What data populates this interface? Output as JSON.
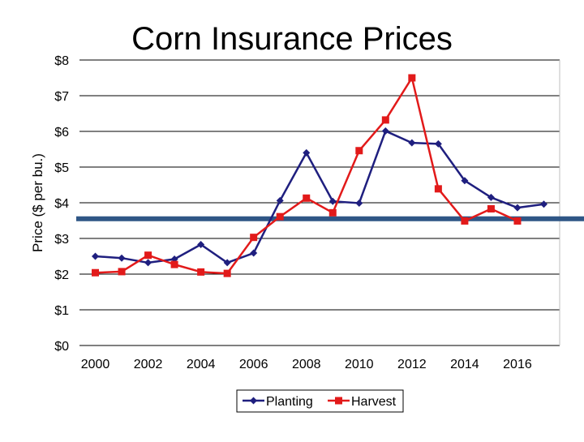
{
  "chart_data": {
    "type": "line",
    "title": "Corn Insurance Prices",
    "xlabel": "",
    "ylabel": "Price ($ per bu.)",
    "ylim": [
      0,
      8
    ],
    "xlim": [
      1999.4,
      2017.6
    ],
    "yticks": [
      {
        "v": 0,
        "label": "$0"
      },
      {
        "v": 1,
        "label": "$1"
      },
      {
        "v": 2,
        "label": "$2"
      },
      {
        "v": 3,
        "label": "$3"
      },
      {
        "v": 4,
        "label": "$4"
      },
      {
        "v": 5,
        "label": "$5"
      },
      {
        "v": 6,
        "label": "$6"
      },
      {
        "v": 7,
        "label": "$7"
      },
      {
        "v": 8,
        "label": "$8"
      }
    ],
    "xticks": [
      {
        "v": 2000,
        "label": "2000"
      },
      {
        "v": 2002,
        "label": "2002"
      },
      {
        "v": 2004,
        "label": "2004"
      },
      {
        "v": 2006,
        "label": "2006"
      },
      {
        "v": 2008,
        "label": "2008"
      },
      {
        "v": 2010,
        "label": "2010"
      },
      {
        "v": 2012,
        "label": "2012"
      },
      {
        "v": 2014,
        "label": "2014"
      },
      {
        "v": 2016,
        "label": "2016"
      }
    ],
    "grid": true,
    "legend_position": "bottom-center",
    "reference_line": {
      "y": 3.55,
      "color": "#2f5686"
    },
    "series": [
      {
        "name": "Planting",
        "color": "#1f1f7f",
        "marker": "diamond",
        "x": [
          2000,
          2001,
          2002,
          2003,
          2004,
          2005,
          2006,
          2007,
          2008,
          2009,
          2010,
          2011,
          2012,
          2013,
          2014,
          2015,
          2016,
          2017
        ],
        "values": [
          2.5,
          2.45,
          2.32,
          2.42,
          2.83,
          2.32,
          2.59,
          4.06,
          5.4,
          4.04,
          3.99,
          6.01,
          5.68,
          5.65,
          4.62,
          4.15,
          3.86,
          3.96
        ]
      },
      {
        "name": "Harvest",
        "color": "#e21a1a",
        "marker": "square",
        "x": [
          2000,
          2001,
          2002,
          2003,
          2004,
          2005,
          2006,
          2007,
          2008,
          2009,
          2010,
          2011,
          2012,
          2013,
          2014,
          2015,
          2016
        ],
        "values": [
          2.04,
          2.07,
          2.53,
          2.27,
          2.06,
          2.02,
          3.03,
          3.61,
          4.13,
          3.72,
          5.46,
          6.32,
          7.5,
          4.39,
          3.49,
          3.83,
          3.49
        ]
      }
    ]
  }
}
